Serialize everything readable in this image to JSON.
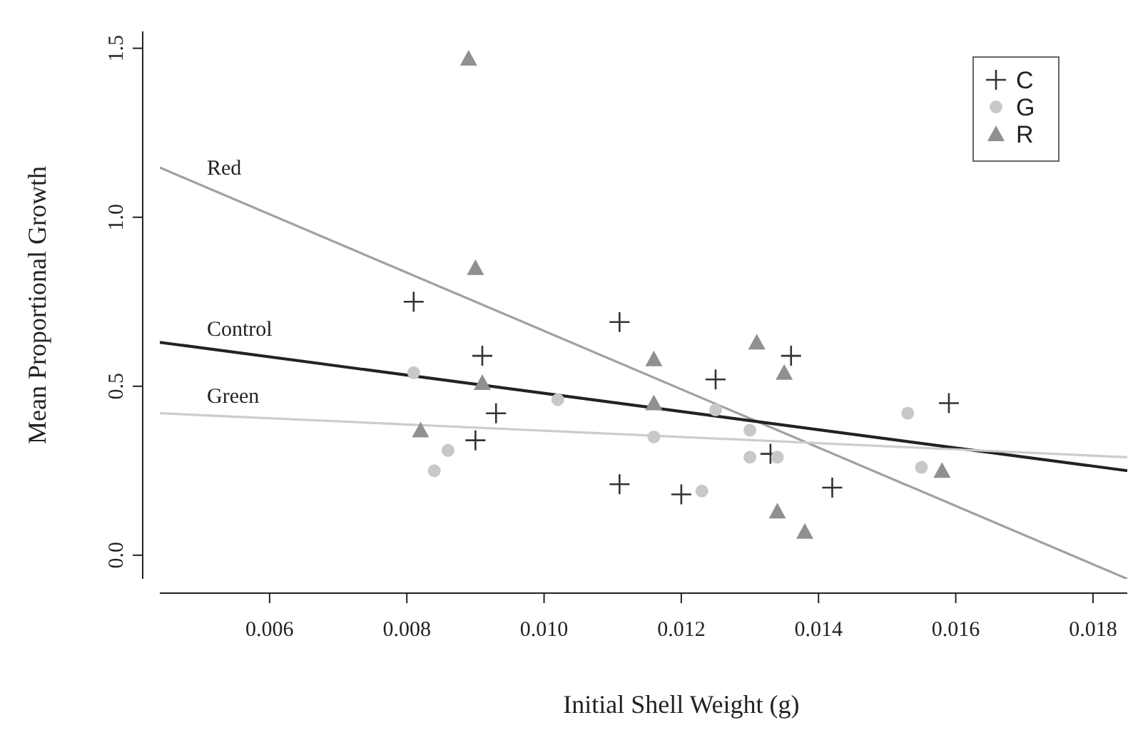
{
  "chart_data": {
    "type": "scatter",
    "xlabel": "Initial Shell Weight (g)",
    "ylabel": "Mean Proportional Growth",
    "xlim": [
      0.0044,
      0.0185
    ],
    "ylim": [
      -0.07,
      1.55
    ],
    "xticks": [
      {
        "value": 0.006,
        "label": "0.006"
      },
      {
        "value": 0.008,
        "label": "0.008"
      },
      {
        "value": 0.01,
        "label": "0.010"
      },
      {
        "value": 0.012,
        "label": "0.012"
      },
      {
        "value": 0.014,
        "label": "0.014"
      },
      {
        "value": 0.016,
        "label": "0.016"
      },
      {
        "value": 0.018,
        "label": "0.018"
      }
    ],
    "yticks": [
      {
        "value": 0,
        "label": "0.0"
      },
      {
        "value": 0.5,
        "label": "0.5"
      },
      {
        "value": 1,
        "label": "1.0"
      },
      {
        "value": 1.5,
        "label": "1.5"
      }
    ],
    "grid": false,
    "legend": "top right",
    "series": [
      {
        "name": "C",
        "marker": "cross",
        "color": "#333333",
        "x": [
          0.0081,
          0.0111,
          0.0091,
          0.0093,
          0.009,
          0.0111,
          0.012,
          0.0136,
          0.0125,
          0.0159,
          0.0133,
          0.0142
        ],
        "values": [
          0.75,
          0.69,
          0.59,
          0.42,
          0.34,
          0.21,
          0.18,
          0.59,
          0.52,
          0.45,
          0.3,
          0.2
        ]
      },
      {
        "name": "G",
        "marker": "circle",
        "color": "#c8c8c8",
        "x": [
          0.0081,
          0.0086,
          0.0084,
          0.0102,
          0.0116,
          0.0123,
          0.013,
          0.013,
          0.0134,
          0.0153,
          0.0155,
          0.0125
        ],
        "values": [
          0.54,
          0.31,
          0.25,
          0.46,
          0.35,
          0.19,
          0.37,
          0.29,
          0.29,
          0.42,
          0.26,
          0.43
        ]
      },
      {
        "name": "R",
        "marker": "triangle",
        "color": "#909090",
        "x": [
          0.0089,
          0.009,
          0.0091,
          0.0082,
          0.0116,
          0.0116,
          0.0131,
          0.0135,
          0.0134,
          0.0138,
          0.0158
        ],
        "values": [
          1.47,
          0.85,
          0.51,
          0.37,
          0.58,
          0.45,
          0.63,
          0.54,
          0.13,
          0.07,
          0.25
        ]
      },
      {
        "name": "Red",
        "type": "line",
        "marker": "none",
        "color": "#a0a0a0",
        "x": [
          0.0044,
          0.0185
        ],
        "values": [
          1.147,
          -0.07
        ]
      },
      {
        "name": "Control",
        "type": "line",
        "marker": "none",
        "color": "#222222",
        "x": [
          0.0044,
          0.0185
        ],
        "values": [
          0.63,
          0.25
        ]
      },
      {
        "name": "Green",
        "type": "line",
        "marker": "none",
        "color": "#cccccc",
        "x": [
          0.0044,
          0.0185
        ],
        "values": [
          0.42,
          0.29
        ]
      }
    ]
  }
}
